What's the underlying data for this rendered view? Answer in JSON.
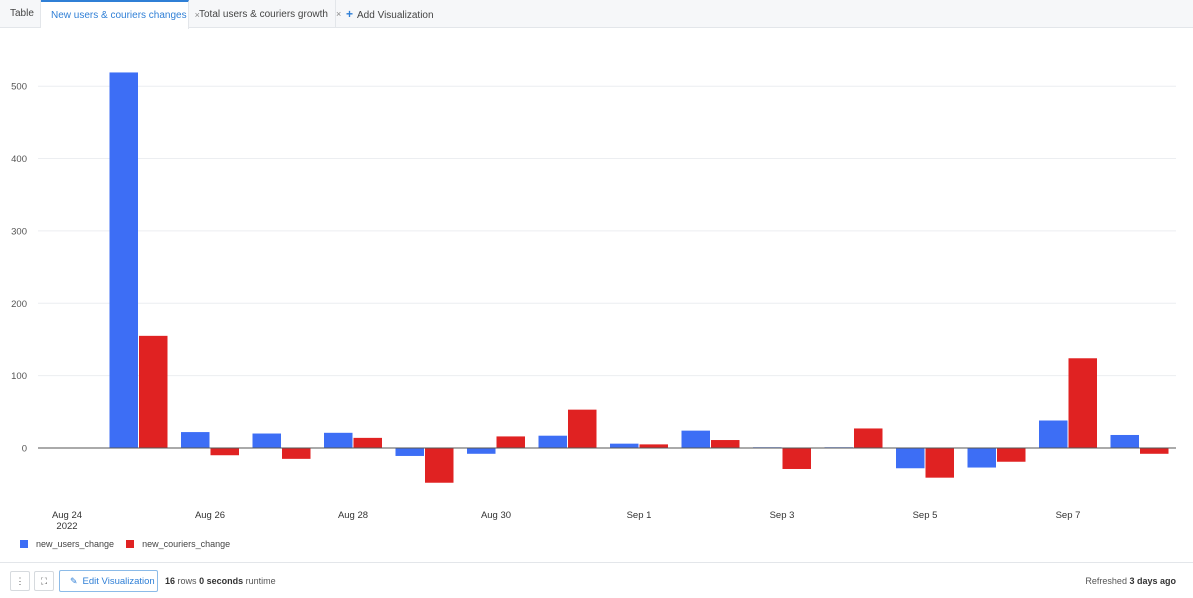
{
  "tabs": [
    {
      "label": "Table",
      "closable": false,
      "active": false
    },
    {
      "label": "New users & couriers changes",
      "closable": true,
      "active": true
    },
    {
      "label": "Total users & couriers growth",
      "closable": true,
      "active": false
    }
  ],
  "add_tab_label": "Add Visualization",
  "close_glyph": "×",
  "chart_data": {
    "type": "bar",
    "x_dates": [
      "2022-08-24",
      "2022-08-25",
      "2022-08-26",
      "2022-08-27",
      "2022-08-28",
      "2022-08-29",
      "2022-08-30",
      "2022-08-31",
      "2022-09-01",
      "2022-09-02",
      "2022-09-03",
      "2022-09-04",
      "2022-09-05",
      "2022-09-06",
      "2022-09-07",
      "2022-09-08"
    ],
    "series": [
      {
        "name": "new_users_change",
        "color": "#3d6ef5",
        "values": [
          0,
          519,
          22,
          20,
          21,
          -11,
          -8,
          17,
          6,
          24,
          1,
          1,
          -28,
          -27,
          38,
          18
        ]
      },
      {
        "name": "new_couriers_change",
        "color": "#e02222",
        "values": [
          0,
          155,
          -10,
          -15,
          14,
          -48,
          16,
          53,
          5,
          11,
          -29,
          27,
          -41,
          -19,
          124,
          -8
        ]
      }
    ],
    "y_ticks": [
      0,
      100,
      200,
      300,
      400,
      500
    ],
    "ylim": [
      -60,
      525
    ],
    "x_ticks": [
      {
        "date": "2022-08-24",
        "label": "Aug 24",
        "sublabel": "2022"
      },
      {
        "date": "2022-08-26",
        "label": "Aug 26",
        "sublabel": ""
      },
      {
        "date": "2022-08-28",
        "label": "Aug 28",
        "sublabel": ""
      },
      {
        "date": "2022-08-30",
        "label": "Aug 30",
        "sublabel": ""
      },
      {
        "date": "2022-09-01",
        "label": "Sep 1",
        "sublabel": ""
      },
      {
        "date": "2022-09-03",
        "label": "Sep 3",
        "sublabel": ""
      },
      {
        "date": "2022-09-05",
        "label": "Sep 5",
        "sublabel": ""
      },
      {
        "date": "2022-09-07",
        "label": "Sep 7",
        "sublabel": ""
      }
    ],
    "grid": true,
    "legend_position": "bottom-left"
  },
  "footer": {
    "menu_icon": "more-vertical-icon",
    "expand_icon": "expand-icon",
    "edit_label": "Edit Visualization",
    "rows_count": "16",
    "rows_word": "rows",
    "runtime_value": "0 seconds",
    "runtime_word": "runtime",
    "refreshed_prefix": "Refreshed",
    "refreshed_value": "3 days ago"
  }
}
